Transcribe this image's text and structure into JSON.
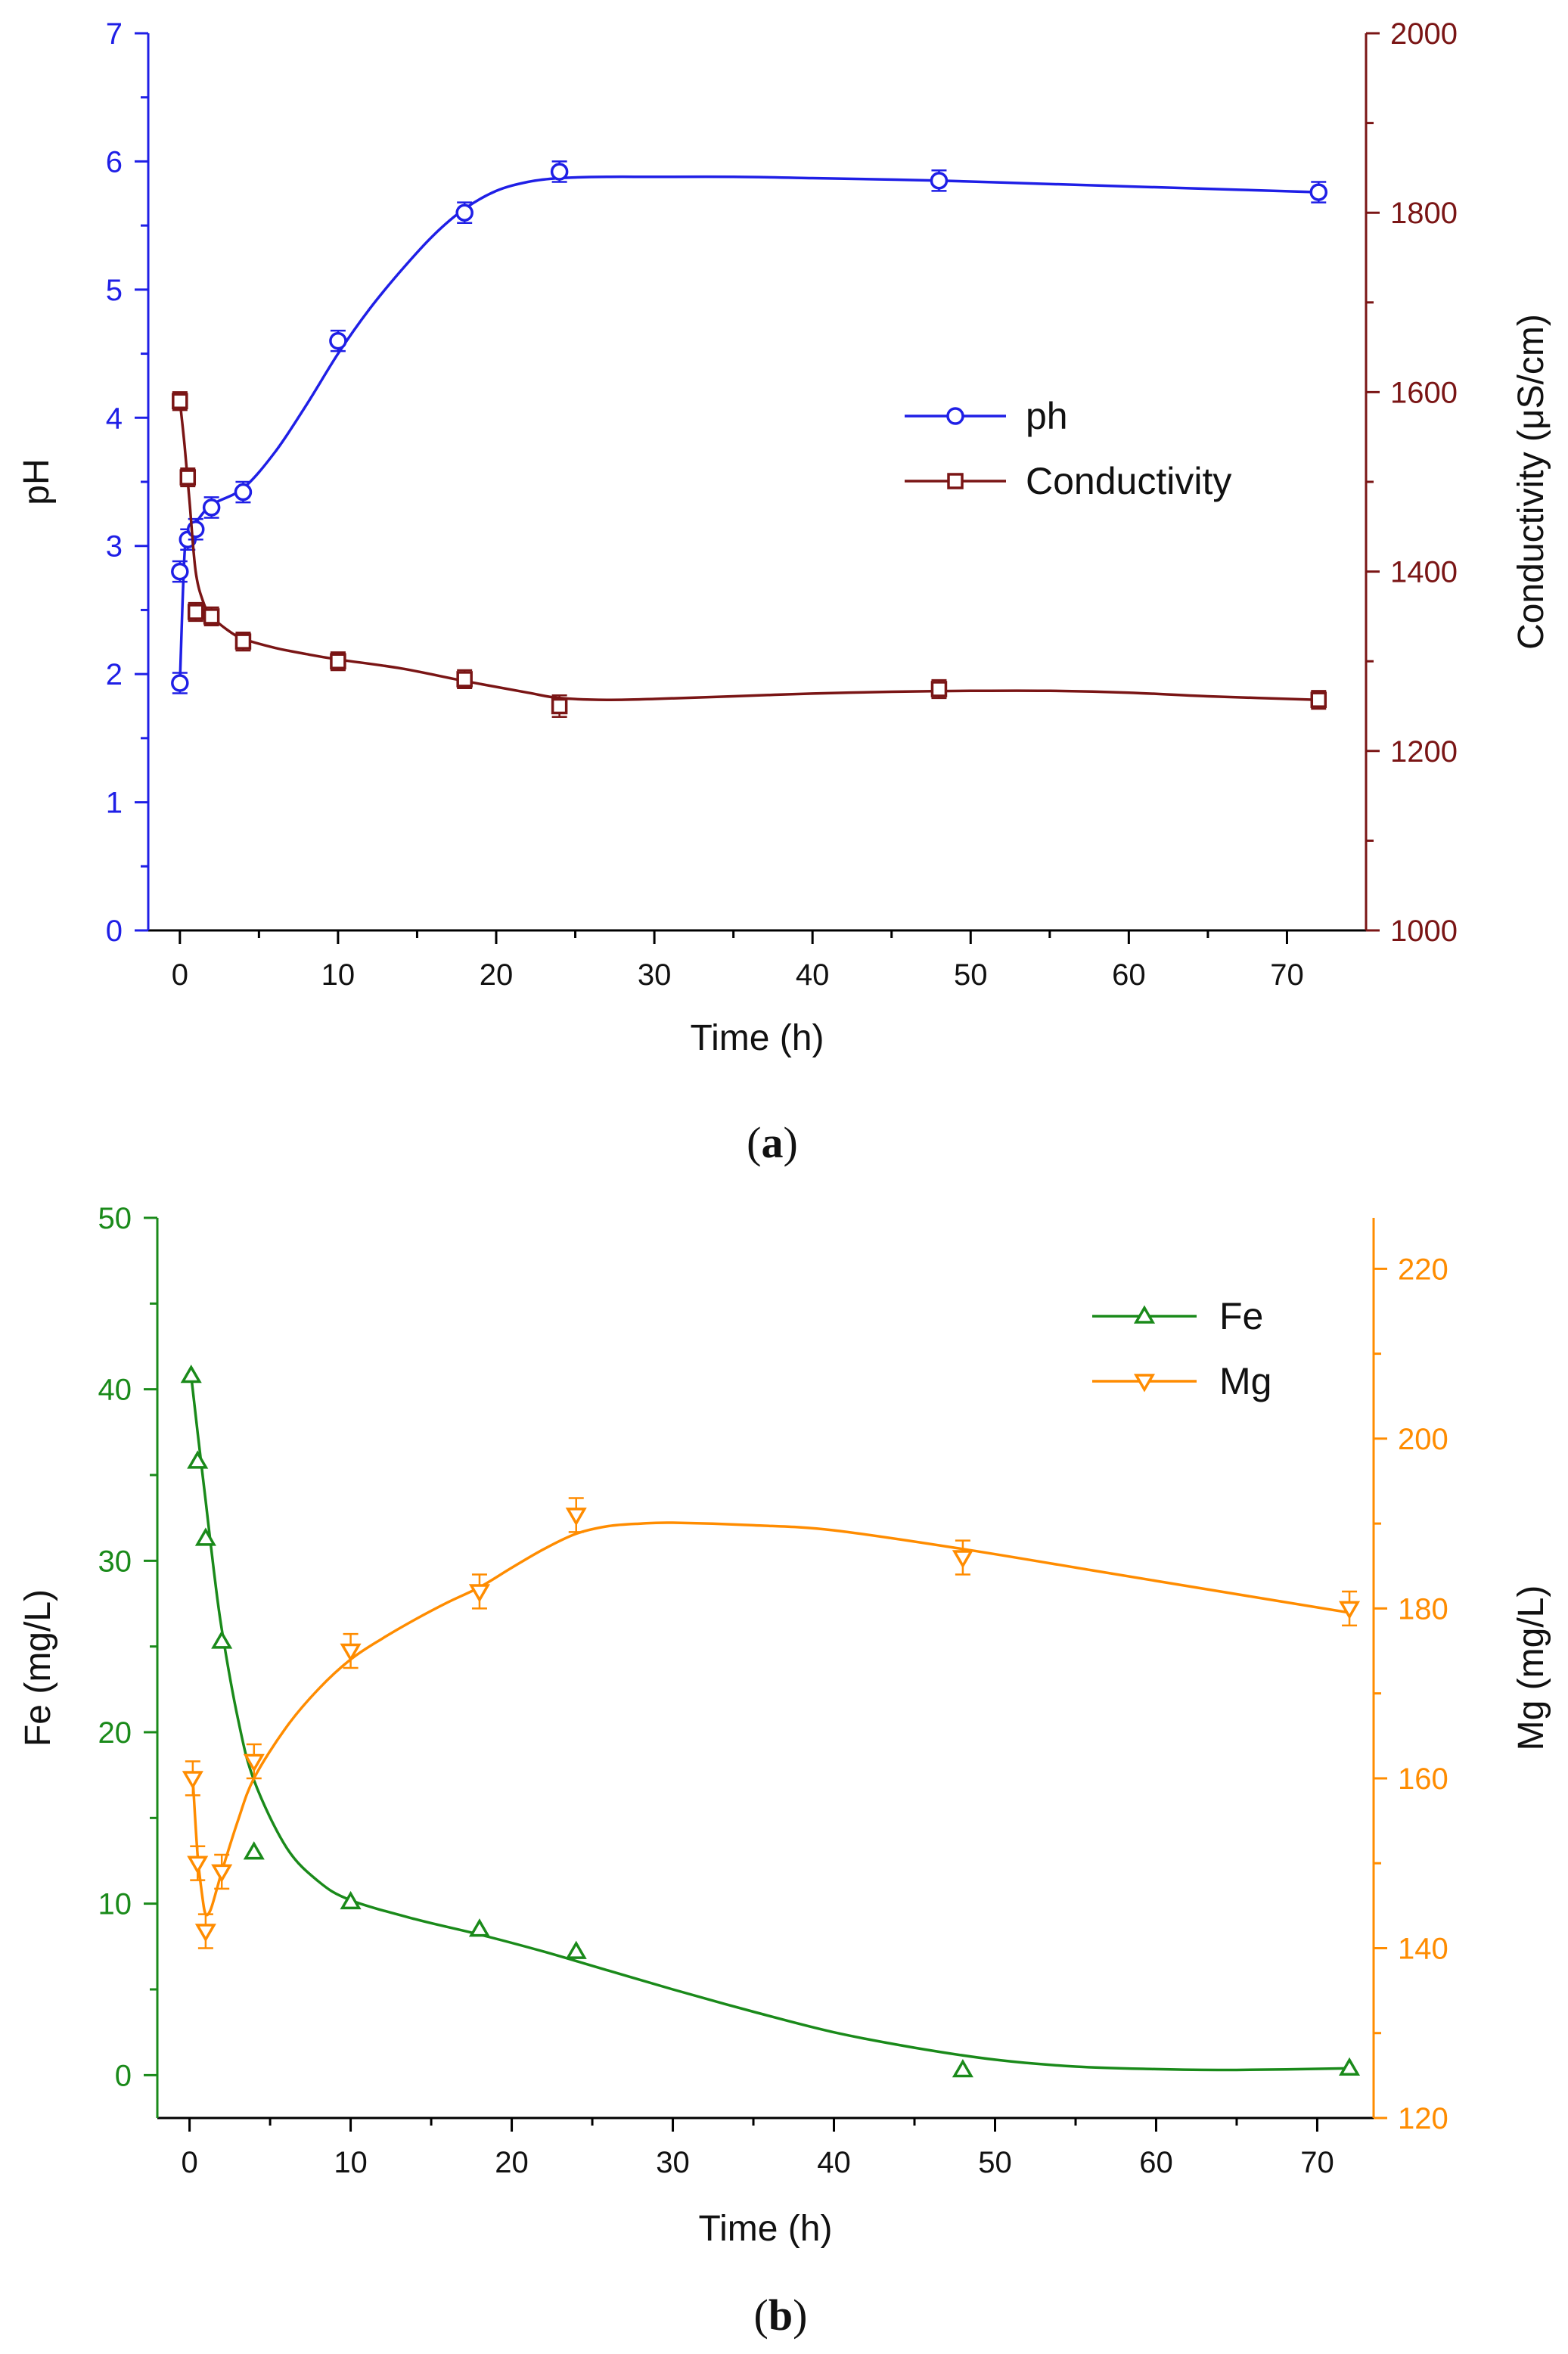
{
  "chart_data": [
    {
      "panel_label_prefix": "(",
      "panel_label_letter": "a",
      "panel_label_suffix": ")",
      "type": "line",
      "title": "",
      "xlabel": "Time (h)",
      "xlim": [
        -2,
        75
      ],
      "xticks": [
        0,
        10,
        20,
        30,
        40,
        50,
        60,
        70
      ],
      "left_axis": {
        "label": "pH",
        "ylim": [
          0,
          7
        ],
        "ticks": [
          0,
          1,
          2,
          3,
          4,
          5,
          6,
          7
        ],
        "color": "#1f1fe6"
      },
      "right_axis": {
        "label": "Conductivity (μS/cm)",
        "ylim": [
          1000,
          2000
        ],
        "ticks": [
          1000,
          1200,
          1400,
          1600,
          1800,
          2000
        ],
        "color": "#7a1515"
      },
      "legend": {
        "position": "center-right"
      },
      "series": [
        {
          "name": "ph",
          "axis": "left",
          "marker": "circle",
          "color": "#1f1fe6",
          "x": [
            0,
            0,
            0.5,
            1,
            2,
            4,
            10,
            18,
            24,
            48,
            72
          ],
          "y": [
            1.93,
            2.8,
            3.05,
            3.13,
            3.3,
            3.42,
            4.6,
            5.6,
            5.92,
            5.85,
            5.76
          ],
          "err": [
            0.08,
            0.08,
            0.08,
            0.08,
            0.08,
            0.08,
            0.08,
            0.08,
            0.08,
            0.08,
            0.08
          ],
          "fit_x": [
            0,
            0.3,
            0.6,
            1,
            2,
            4,
            6,
            8,
            10,
            12,
            14,
            16,
            18,
            20,
            22,
            24,
            27,
            30,
            35,
            40,
            48,
            56,
            64,
            72
          ],
          "fit_y": [
            1.93,
            2.95,
            3.1,
            3.18,
            3.32,
            3.45,
            3.73,
            4.1,
            4.5,
            4.85,
            5.15,
            5.42,
            5.63,
            5.77,
            5.84,
            5.87,
            5.88,
            5.88,
            5.88,
            5.87,
            5.85,
            5.82,
            5.79,
            5.76
          ]
        },
        {
          "name": "Conductivity",
          "axis": "right",
          "marker": "square",
          "color": "#7a1515",
          "x": [
            0,
            0.5,
            1,
            2,
            4,
            10,
            18,
            24,
            48,
            72
          ],
          "y": [
            1590,
            1505,
            1355,
            1350,
            1322,
            1300,
            1280,
            1250,
            1269,
            1257
          ],
          "err": [
            10,
            10,
            10,
            10,
            10,
            10,
            10,
            12,
            10,
            10
          ],
          "fit_x": [
            0,
            0.3,
            0.6,
            1,
            1.5,
            2,
            3,
            4,
            6,
            8,
            10,
            14,
            18,
            22,
            24,
            27,
            30,
            35,
            40,
            45,
            50,
            55,
            60,
            65,
            72
          ],
          "fit_y": [
            1590,
            1540,
            1480,
            1400,
            1365,
            1350,
            1335,
            1325,
            1315,
            1308,
            1302,
            1292,
            1278,
            1265,
            1259,
            1257,
            1258,
            1261,
            1264,
            1266,
            1267,
            1267,
            1265,
            1261,
            1257
          ]
        }
      ]
    },
    {
      "panel_label_prefix": "(",
      "panel_label_letter": "b",
      "panel_label_suffix": ")",
      "type": "line",
      "title": "",
      "xlabel": "Time (h)",
      "xlim": [
        -2,
        73.5
      ],
      "xticks": [
        0,
        10,
        20,
        30,
        40,
        50,
        60,
        70
      ],
      "left_axis": {
        "label": "Fe (mg/L)",
        "ylim": [
          -2.5,
          50
        ],
        "ticks": [
          0,
          10,
          20,
          30,
          40,
          50
        ],
        "color": "#1a8a1a"
      },
      "right_axis": {
        "label": "Mg (mg/L)",
        "ylim": [
          120,
          226
        ],
        "ticks": [
          120,
          140,
          160,
          180,
          200,
          220
        ],
        "color": "#ff8c00"
      },
      "legend": {
        "position": "top-right"
      },
      "series": [
        {
          "name": "Fe",
          "axis": "left",
          "marker": "triangle-up",
          "color": "#1a8a1a",
          "x": [
            0.1,
            0.5,
            1,
            2,
            4,
            10,
            18,
            24,
            48,
            72
          ],
          "y": [
            40.8,
            35.8,
            31.3,
            25.3,
            13.0,
            10.1,
            8.5,
            7.2,
            0.3,
            0.4
          ],
          "err": [
            0,
            0,
            0,
            0,
            0,
            0,
            0,
            0,
            0,
            0
          ],
          "fit_x": [
            0.1,
            0.5,
            1,
            1.5,
            2,
            3,
            4,
            6,
            8,
            10,
            14,
            18,
            22,
            26,
            30,
            35,
            40,
            45,
            50,
            55,
            60,
            65,
            72
          ],
          "fit_y": [
            40.8,
            37.5,
            33.5,
            29.5,
            26.0,
            20.8,
            17.2,
            13.3,
            11.3,
            10.2,
            9.1,
            8.2,
            7.2,
            6.1,
            5.0,
            3.7,
            2.5,
            1.6,
            0.9,
            0.5,
            0.35,
            0.3,
            0.4
          ]
        },
        {
          "name": "Mg",
          "axis": "right",
          "marker": "triangle-down",
          "color": "#ff8c00",
          "x": [
            0.2,
            0.5,
            1,
            2,
            4,
            10,
            18,
            24,
            48,
            72
          ],
          "y": [
            160,
            150,
            142,
            149,
            162,
            175,
            182,
            191,
            186,
            180
          ],
          "err": [
            2,
            2,
            2,
            2,
            2,
            2,
            2,
            2,
            2,
            2
          ],
          "fit_x": [
            0.2,
            0.5,
            0.8,
            1,
            1.3,
            1.7,
            2,
            3,
            4,
            6,
            8,
            10,
            12,
            14,
            16,
            18,
            20,
            22,
            24,
            26,
            28,
            30,
            35,
            40,
            48,
            56,
            64,
            72
          ],
          "fit_y": [
            160,
            151,
            146,
            144,
            144.5,
            147,
            149,
            155,
            160,
            166,
            170.5,
            174,
            176.5,
            178.7,
            180.7,
            182.5,
            184.8,
            187,
            188.8,
            189.7,
            190,
            190.1,
            189.8,
            189.2,
            187,
            184.5,
            182,
            179.5
          ]
        }
      ]
    }
  ]
}
